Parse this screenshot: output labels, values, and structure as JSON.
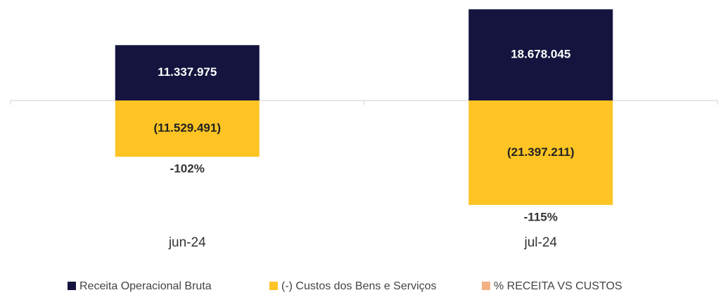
{
  "chart_data": {
    "type": "bar",
    "categories": [
      "jun-24",
      "jul-24"
    ],
    "series": [
      {
        "name": "Receita Operacional Bruta",
        "color": "#14143f",
        "values": [
          11337975,
          18678045
        ],
        "value_labels": [
          "11.337.975",
          "18.678.045"
        ]
      },
      {
        "name": "(-) Custos dos Bens e Serviços",
        "color": "#fdc424",
        "values": [
          -11529491,
          -21397211
        ],
        "value_labels": [
          "(11.529.491)",
          "(21.397.211)"
        ]
      },
      {
        "name": "% RECEITA VS CUSTOS",
        "color": "#f4b183",
        "values": [
          -102,
          -115
        ],
        "value_labels": [
          "-102%",
          "-115%"
        ]
      }
    ],
    "ylim": [
      -22000000,
      19000000
    ]
  }
}
